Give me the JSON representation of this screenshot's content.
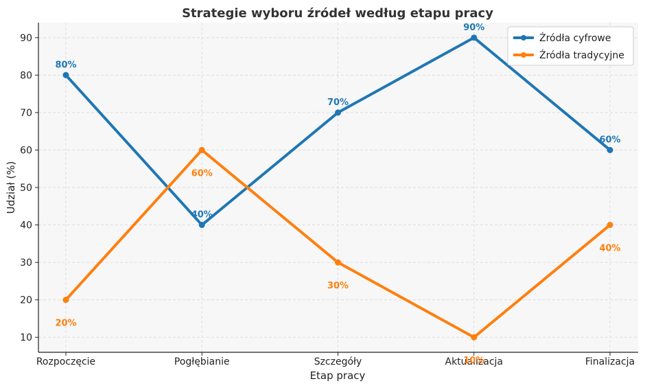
{
  "chart_data": {
    "type": "line",
    "title": "Strategie wyboru źródeł według etapu pracy",
    "xlabel": "Etap pracy",
    "ylabel": "Udział (%)",
    "categories": [
      "Rozpoczęcie",
      "Pogłębianie",
      "Szczegóły",
      "Aktualizacja",
      "Finalizacja"
    ],
    "ylim": [
      6,
      94
    ],
    "yticks": [
      10,
      20,
      30,
      40,
      50,
      60,
      70,
      80,
      90
    ],
    "grid": true,
    "legend_position": "top-right",
    "series": [
      {
        "name": "Źródła cyfrowe",
        "color": "#1f77b4",
        "values": [
          80,
          40,
          70,
          90,
          60
        ],
        "labels": [
          "80%",
          "40%",
          "70%",
          "90%",
          "60%"
        ],
        "label_position": "above"
      },
      {
        "name": "Źródła tradycyjne",
        "color": "#ff7f0e",
        "values": [
          20,
          60,
          30,
          10,
          40
        ],
        "labels": [
          "20%",
          "60%",
          "30%",
          "10%",
          "40%"
        ],
        "label_position": "below"
      }
    ]
  }
}
